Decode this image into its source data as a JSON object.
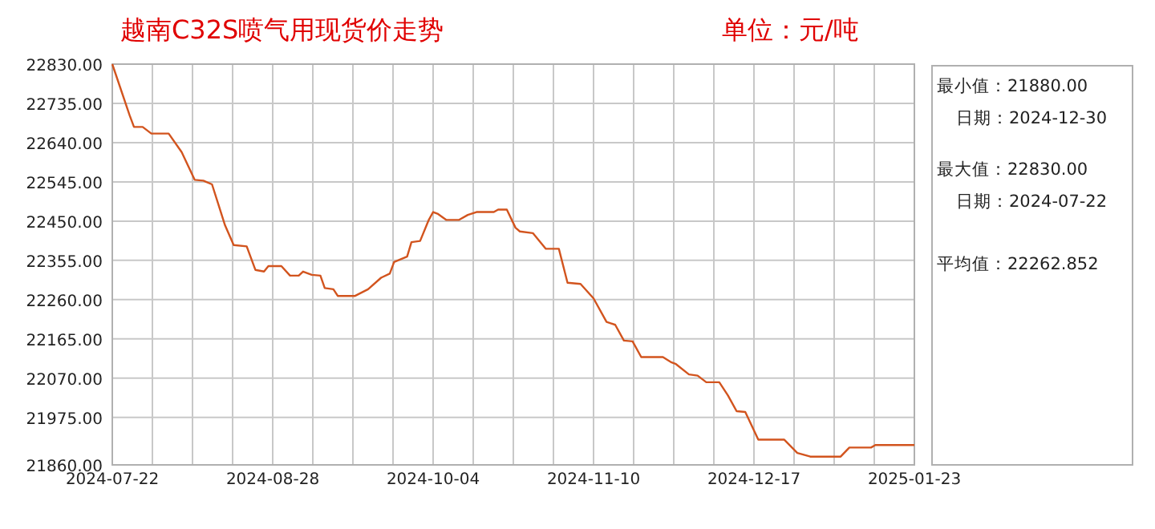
{
  "chart_data": [
    {
      "type": "line",
      "title": "越南C32S喷气用现货价走势",
      "subtitle": "单位：元/吨",
      "x": [
        "2024-07-22",
        "2024-07-26",
        "2024-07-27",
        "2024-07-29",
        "2024-07-31",
        "2024-08-04",
        "2024-08-07",
        "2024-08-10",
        "2024-08-12",
        "2024-08-14",
        "2024-08-17",
        "2024-08-19",
        "2024-08-22",
        "2024-08-24",
        "2024-08-26",
        "2024-08-27",
        "2024-08-30",
        "2024-09-01",
        "2024-09-03",
        "2024-09-04",
        "2024-09-06",
        "2024-09-08",
        "2024-09-09",
        "2024-09-11",
        "2024-09-12",
        "2024-09-16",
        "2024-09-19",
        "2024-09-22",
        "2024-09-24",
        "2024-09-25",
        "2024-09-28",
        "2024-09-29",
        "2024-10-01",
        "2024-10-03",
        "2024-10-04",
        "2024-10-05",
        "2024-10-07",
        "2024-10-10",
        "2024-10-12",
        "2024-10-14",
        "2024-10-18",
        "2024-10-19",
        "2024-10-21",
        "2024-10-23",
        "2024-10-24",
        "2024-10-27",
        "2024-10-30",
        "2024-11-02",
        "2024-11-04",
        "2024-11-07",
        "2024-11-10",
        "2024-11-13",
        "2024-11-15",
        "2024-11-17",
        "2024-11-19",
        "2024-11-21",
        "2024-11-26",
        "2024-11-28",
        "2024-11-29",
        "2024-12-02",
        "2024-12-04",
        "2024-12-06",
        "2024-12-09",
        "2024-12-11",
        "2024-12-13",
        "2024-12-15",
        "2024-12-18",
        "2024-12-24",
        "2024-12-27",
        "2024-12-30",
        "2025-01-06",
        "2025-01-08",
        "2025-01-13",
        "2025-01-14",
        "2025-01-23"
      ],
      "series": [
        {
          "color": "#d2541e",
          "values": [
            22830,
            22706,
            22678,
            22678,
            22662,
            22662,
            22617,
            22550,
            22548,
            22539,
            22440,
            22392,
            22389,
            22332,
            22328,
            22341,
            22341,
            22318,
            22318,
            22328,
            22320,
            22318,
            22288,
            22285,
            22269,
            22269,
            22285,
            22313,
            22323,
            22351,
            22364,
            22399,
            22402,
            22453,
            22472,
            22468,
            22453,
            22453,
            22465,
            22472,
            22472,
            22478,
            22478,
            22434,
            22425,
            22421,
            22383,
            22383,
            22301,
            22298,
            22263,
            22206,
            22199,
            22161,
            22159,
            22121,
            22121,
            22108,
            22104,
            22079,
            22076,
            22060,
            22060,
            22028,
            21990,
            21988,
            21921,
            21921,
            21889,
            21880,
            21880,
            21902,
            21902,
            21908,
            21908
          ]
        }
      ],
      "xlim": [
        "2024-07-22",
        "2025-01-23"
      ],
      "xticks": [
        "2024-07-22",
        "2024-08-28",
        "2024-10-04",
        "2024-11-10",
        "2024-12-17",
        "2025-01-23"
      ],
      "ylim": [
        21860,
        22830
      ],
      "yticks": [
        {
          "value": 22830,
          "label": "22830.00"
        },
        {
          "value": 22735,
          "label": "22735.00"
        },
        {
          "value": 22640,
          "label": "22640.00"
        },
        {
          "value": 22545,
          "label": "22545.00"
        },
        {
          "value": 22450,
          "label": "22450.00"
        },
        {
          "value": 22355,
          "label": "22355.00"
        },
        {
          "value": 22260,
          "label": "22260.00"
        },
        {
          "value": 22165,
          "label": "22165.00"
        },
        {
          "value": 22070,
          "label": "22070.00"
        },
        {
          "value": 21975,
          "label": "21975.00"
        },
        {
          "value": 21860,
          "label": "21860.00"
        }
      ],
      "grid": true,
      "marker": "none",
      "line_style": "solid"
    },
    {
      "type": "other",
      "annotations": [
        "最小值：21880.00",
        "日期：2024-12-30",
        "最大值：22830.00",
        "日期：2024-07-22",
        "平均值：22262.852"
      ]
    }
  ]
}
